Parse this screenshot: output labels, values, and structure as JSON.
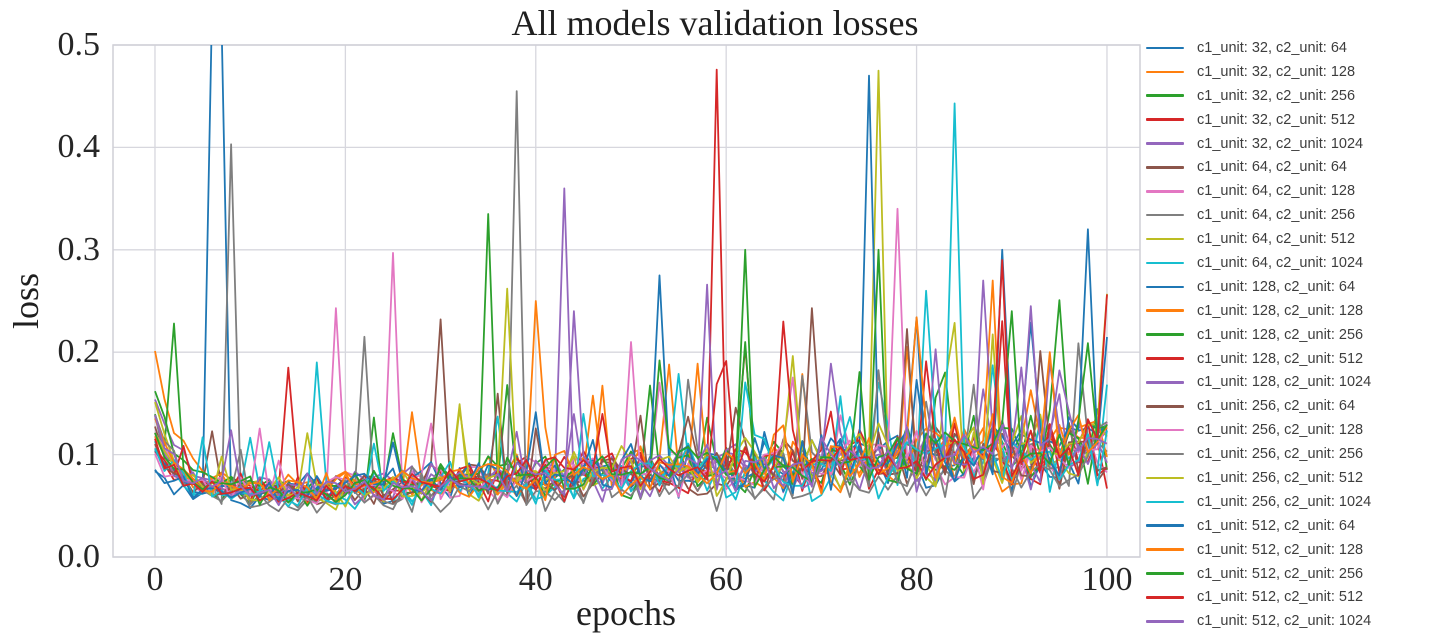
{
  "chart_data": {
    "type": "line",
    "title": "All models validation losses",
    "xlabel": "epochs",
    "ylabel": "loss",
    "xlim": [
      -4.41,
      103.47
    ],
    "ylim": [
      0,
      0.5
    ],
    "x_range": [
      0,
      100
    ],
    "x_step": 1,
    "grid": true,
    "legend_position": "right-outside",
    "xticks": [
      {
        "value": 0,
        "label": "0"
      },
      {
        "value": 20,
        "label": "20"
      },
      {
        "value": 40,
        "label": "40"
      },
      {
        "value": 60,
        "label": "60"
      },
      {
        "value": 80,
        "label": "80"
      },
      {
        "value": 100,
        "label": "100"
      }
    ],
    "yticks": [
      {
        "value": 0.0,
        "label": "0.0"
      },
      {
        "value": 0.1,
        "label": "0.1"
      },
      {
        "value": 0.2,
        "label": "0.2"
      },
      {
        "value": 0.3,
        "label": "0.3"
      },
      {
        "value": 0.4,
        "label": "0.4"
      },
      {
        "value": 0.5,
        "label": "0.5"
      }
    ],
    "style": {
      "background": "#ffffff",
      "grid_color": "#d7d7de",
      "spine_color": "#cfcfd6",
      "text_color": "#262626",
      "legend_text_color": "#3d3d3d",
      "line_width": 1.8
    },
    "noise_model": {
      "comment": "per-epoch values = floor + (start-floor)*exp(-e/decay) + drift*e/100 + triangular noise of amplitude amp0+amp1*e/100, occasional bumps, clamped at min; explicit spikes [epoch, loss] override",
      "decay": 2.8,
      "amp0": 0.013,
      "amp1": 0.032,
      "bump_p0": 0.02,
      "bump_p1": 0.06,
      "bump_min": 0.02,
      "bump_scale": 0.1,
      "min": 0.042
    },
    "series": [
      {
        "label": "c1_unit: 32, c2_unit: 64",
        "color": "#1f77b4",
        "seed": 101,
        "start": 0.085,
        "floor": 0.055,
        "drift": 0.045,
        "spikes": [
          [
            6,
            0.54
          ],
          [
            7,
            0.52
          ]
        ]
      },
      {
        "label": "c1_unit: 32, c2_unit: 128",
        "color": "#ff7f0e",
        "seed": 202,
        "start": 0.2,
        "floor": 0.06,
        "drift": 0.045,
        "spikes": []
      },
      {
        "label": "c1_unit: 32, c2_unit: 256",
        "color": "#2ca02c",
        "seed": 303,
        "start": 0.13,
        "floor": 0.058,
        "drift": 0.05,
        "spikes": [
          [
            2,
            0.228
          ],
          [
            35,
            0.335
          ]
        ]
      },
      {
        "label": "c1_unit: 32, c2_unit: 512",
        "color": "#d62728",
        "seed": 404,
        "start": 0.1,
        "floor": 0.062,
        "drift": 0.04,
        "spikes": [
          [
            14,
            0.185
          ]
        ]
      },
      {
        "label": "c1_unit: 32, c2_unit: 1024",
        "color": "#9467bd",
        "seed": 505,
        "start": 0.155,
        "floor": 0.06,
        "drift": 0.042,
        "spikes": [
          [
            43,
            0.36
          ]
        ]
      },
      {
        "label": "c1_unit: 64, c2_unit: 64",
        "color": "#8c564b",
        "seed": 606,
        "start": 0.12,
        "floor": 0.056,
        "drift": 0.048,
        "spikes": [
          [
            30,
            0.232
          ]
        ]
      },
      {
        "label": "c1_unit: 64, c2_unit: 128",
        "color": "#e377c2",
        "seed": 707,
        "start": 0.1,
        "floor": 0.06,
        "drift": 0.045,
        "spikes": [
          [
            19,
            0.243
          ],
          [
            25,
            0.297
          ]
        ]
      },
      {
        "label": "c1_unit: 64, c2_unit: 256",
        "color": "#7f7f7f",
        "seed": 808,
        "start": 0.13,
        "floor": 0.05,
        "drift": 0.042,
        "spikes": [
          [
            8,
            0.403
          ],
          [
            22,
            0.215
          ]
        ]
      },
      {
        "label": "c1_unit: 64, c2_unit: 512",
        "color": "#bcbd22",
        "seed": 909,
        "start": 0.14,
        "floor": 0.054,
        "drift": 0.05,
        "spikes": [
          [
            76,
            0.475
          ]
        ]
      },
      {
        "label": "c1_unit: 64, c2_unit: 1024",
        "color": "#17becf",
        "seed": 1010,
        "start": 0.11,
        "floor": 0.052,
        "drift": 0.048,
        "spikes": [
          [
            17,
            0.19
          ],
          [
            81,
            0.26
          ]
        ]
      },
      {
        "label": "c1_unit: 128, c2_unit: 64",
        "color": "#1f77b4",
        "seed": 1111,
        "start": 0.095,
        "floor": 0.058,
        "drift": 0.052,
        "spikes": [
          [
            53,
            0.275
          ],
          [
            75,
            0.47
          ]
        ]
      },
      {
        "label": "c1_unit: 128, c2_unit: 128",
        "color": "#ff7f0e",
        "seed": 1212,
        "start": 0.115,
        "floor": 0.06,
        "drift": 0.046,
        "spikes": [
          [
            40,
            0.25
          ],
          [
            88,
            0.27
          ]
        ]
      },
      {
        "label": "c1_unit: 128, c2_unit: 256",
        "color": "#2ca02c",
        "seed": 1313,
        "start": 0.16,
        "floor": 0.057,
        "drift": 0.05,
        "spikes": [
          [
            62,
            0.21
          ],
          [
            76,
            0.3
          ]
        ]
      },
      {
        "label": "c1_unit: 128, c2_unit: 512",
        "color": "#d62728",
        "seed": 1414,
        "start": 0.105,
        "floor": 0.061,
        "drift": 0.044,
        "spikes": [
          [
            59,
            0.476
          ]
        ]
      },
      {
        "label": "c1_unit: 128, c2_unit: 1024",
        "color": "#9467bd",
        "seed": 1515,
        "start": 0.12,
        "floor": 0.059,
        "drift": 0.047,
        "spikes": [
          [
            58,
            0.266
          ],
          [
            87,
            0.27
          ]
        ]
      },
      {
        "label": "c1_unit: 256, c2_unit: 64",
        "color": "#8c564b",
        "seed": 1616,
        "start": 0.11,
        "floor": 0.055,
        "drift": 0.05,
        "spikes": [
          [
            69,
            0.243
          ]
        ]
      },
      {
        "label": "c1_unit: 256, c2_unit: 128",
        "color": "#e377c2",
        "seed": 1717,
        "start": 0.125,
        "floor": 0.058,
        "drift": 0.049,
        "spikes": [
          [
            50,
            0.21
          ],
          [
            78,
            0.34
          ]
        ]
      },
      {
        "label": "c1_unit: 256, c2_unit: 256",
        "color": "#7f7f7f",
        "seed": 1818,
        "start": 0.14,
        "floor": 0.049,
        "drift": 0.043,
        "spikes": [
          [
            38,
            0.455
          ]
        ]
      },
      {
        "label": "c1_unit: 256, c2_unit: 512",
        "color": "#bcbd22",
        "seed": 1919,
        "start": 0.12,
        "floor": 0.056,
        "drift": 0.052,
        "spikes": [
          [
            37,
            0.262
          ],
          [
            100,
            0.257
          ]
        ]
      },
      {
        "label": "c1_unit: 256, c2_unit: 1024",
        "color": "#17becf",
        "seed": 2020,
        "start": 0.1,
        "floor": 0.053,
        "drift": 0.047,
        "spikes": [
          [
            84,
            0.443
          ]
        ]
      },
      {
        "label": "c1_unit: 512, c2_unit: 64",
        "color": "#1f77b4",
        "seed": 2121,
        "start": 0.09,
        "floor": 0.057,
        "drift": 0.055,
        "spikes": [
          [
            89,
            0.3
          ],
          [
            98,
            0.32
          ]
        ]
      },
      {
        "label": "c1_unit: 512, c2_unit: 128",
        "color": "#ff7f0e",
        "seed": 2222,
        "start": 0.13,
        "floor": 0.059,
        "drift": 0.048,
        "spikes": [
          [
            94,
            0.2
          ]
        ]
      },
      {
        "label": "c1_unit: 512, c2_unit: 256",
        "color": "#2ca02c",
        "seed": 2323,
        "start": 0.115,
        "floor": 0.058,
        "drift": 0.051,
        "spikes": [
          [
            62,
            0.3
          ],
          [
            90,
            0.24
          ]
        ]
      },
      {
        "label": "c1_unit: 512, c2_unit: 512",
        "color": "#d62728",
        "seed": 2424,
        "start": 0.11,
        "floor": 0.06,
        "drift": 0.046,
        "spikes": [
          [
            66,
            0.23
          ],
          [
            89,
            0.29
          ]
        ]
      },
      {
        "label": "c1_unit: 512, c2_unit: 1024",
        "color": "#9467bd",
        "seed": 2525,
        "start": 0.135,
        "floor": 0.058,
        "drift": 0.05,
        "spikes": [
          [
            44,
            0.24
          ],
          [
            92,
            0.245
          ]
        ]
      }
    ]
  }
}
